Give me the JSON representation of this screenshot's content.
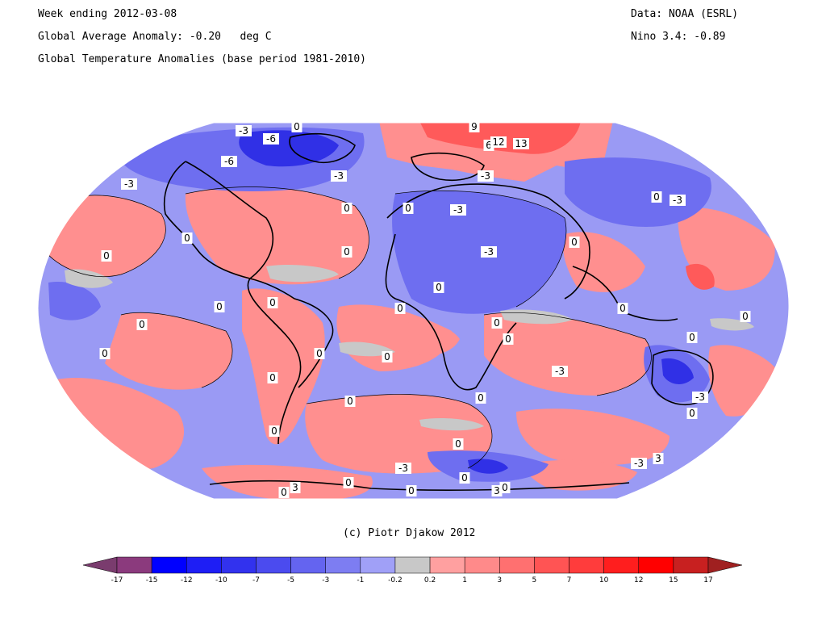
{
  "header": {
    "week_ending": "Week ending 2012-03-08",
    "global_avg": "Global Average Anomaly: -0.20   deg C",
    "subtitle": "Global Temperature Anomalies (base period 1981-2010)",
    "data_source": "Data: NOAA (ESRL)",
    "nino": "Nino 3.4: -0.89"
  },
  "credit": "(c) Piotr Djakow 2012",
  "colorbar": {
    "ticks": [
      "-17",
      "-15",
      "-12",
      "-10",
      "-7",
      "-5",
      "-3",
      "-1",
      "-0.2",
      "0.2",
      "1",
      "3",
      "5",
      "7",
      "10",
      "12",
      "15",
      "17"
    ],
    "colors": {
      "under": "#7a3c6e",
      "bins": [
        "#8b3a7d",
        "#0000ff",
        "#1e1ef5",
        "#3232ee",
        "#4b4bef",
        "#6464f0",
        "#7d7df2",
        "#a0a0f7",
        "#c8c8c8",
        "#ffa0a0",
        "#ff8a8a",
        "#ff7070",
        "#ff5454",
        "#ff3c3c",
        "#ff1e1e",
        "#ff0000",
        "#c82020"
      ],
      "over": "#a02020"
    }
  },
  "map": {
    "colors": {
      "ocean_base": "#9a9af4",
      "warm": "#ff8f8f",
      "warm_strong": "#ff5a5a",
      "cold": "#6e6ef0",
      "cold_strong": "#3030e6",
      "neutral": "#c8c8c8",
      "coast": "#000000"
    },
    "contour_labels": [
      "-3",
      "-6",
      "0",
      "-6",
      "-3",
      "9",
      "6",
      "12",
      "13",
      "-3",
      "-3",
      "0",
      "-3",
      "0",
      "-3",
      "0",
      "0",
      "0",
      "0",
      "0",
      "0",
      "-3",
      "0",
      "0",
      "0",
      "0",
      "0",
      "0",
      "0",
      "0",
      "0",
      "0",
      "0",
      "0",
      "0",
      "-3",
      "0",
      "0",
      "-3",
      "0",
      "0",
      "0",
      "-3",
      "3",
      "0",
      "0",
      "-3",
      "3",
      "0",
      "3",
      "0",
      "0"
    ]
  }
}
